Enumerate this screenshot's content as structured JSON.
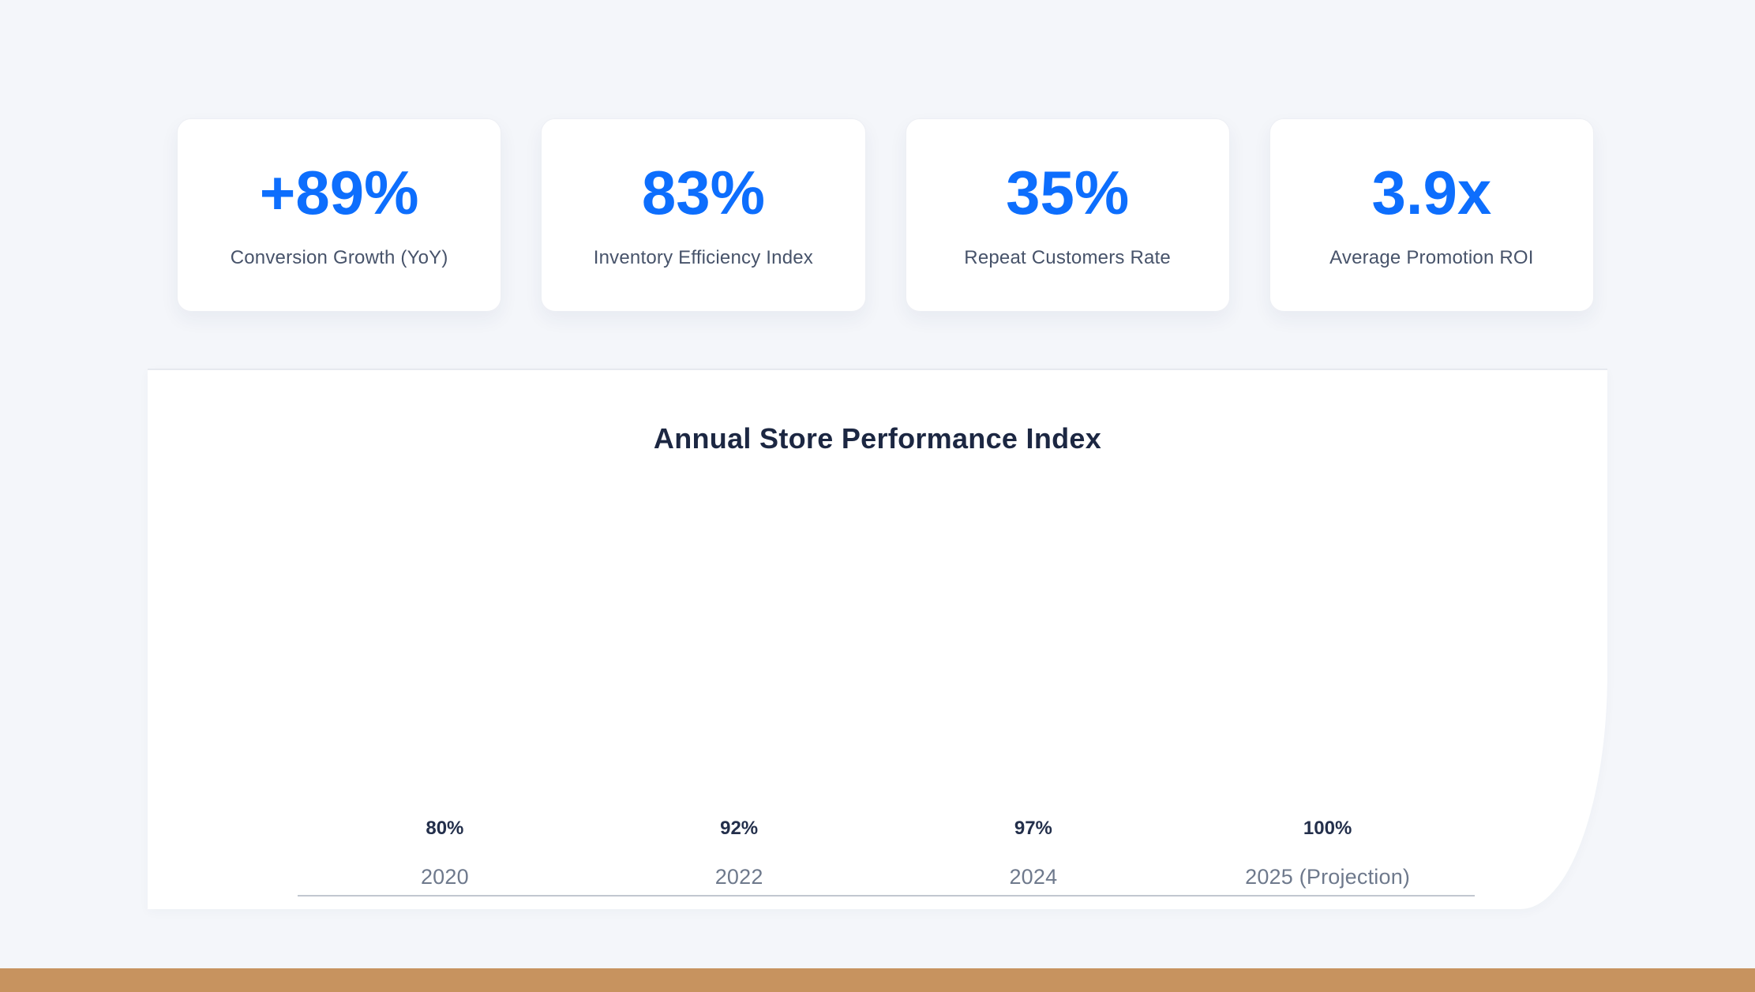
{
  "page": {
    "background_color": "#f4f6fa",
    "footer_color": "#c7935f"
  },
  "stats": {
    "accent_color": "#0d6efd",
    "cards": [
      {
        "value": "+89%",
        "label": "Conversion Growth (YoY)"
      },
      {
        "value": "83%",
        "label": "Inventory Efficiency Index"
      },
      {
        "value": "35%",
        "label": "Repeat Customers Rate"
      },
      {
        "value": "3.9x",
        "label": "Average Promotion ROI"
      }
    ]
  },
  "chart": {
    "title": "Annual Store Performance Index",
    "title_color": "#1c2742",
    "chart_data": {
      "type": "bar",
      "categories": [
        "2020",
        "2022",
        "2024",
        "2025 (Projection)"
      ],
      "values": [
        80,
        92,
        97,
        100
      ],
      "value_labels": [
        "80%",
        "92%",
        "97%",
        "100%"
      ],
      "title": "Annual Store Performance Index",
      "xlabel": "",
      "ylabel": "",
      "ylim": [
        0,
        100
      ],
      "grid": false,
      "legend": "none",
      "note": "bars not visibly rendered; only value labels above category labels along baseline"
    }
  }
}
